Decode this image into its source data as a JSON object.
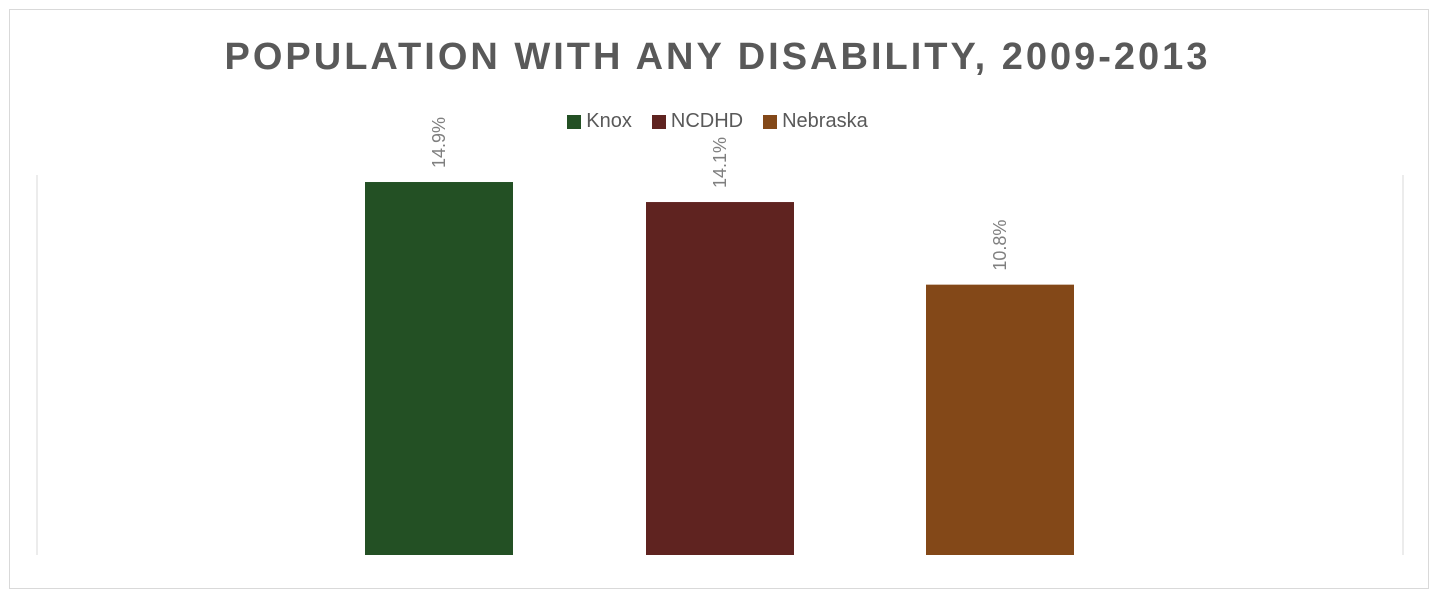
{
  "chart_data": {
    "type": "bar",
    "title": "POPULATION WITH ANY DISABILITY, 2009-2013",
    "categories": [
      "Knox",
      "NCDHD",
      "Nebraska"
    ],
    "values": [
      14.9,
      14.1,
      10.8
    ],
    "data_labels": [
      "14.9%",
      "14.1%",
      "10.8%"
    ],
    "colors": [
      "#235024",
      "#5f2320",
      "#834818"
    ],
    "ylim": [
      0,
      15.5
    ],
    "legend_position": "top",
    "grid": false
  }
}
